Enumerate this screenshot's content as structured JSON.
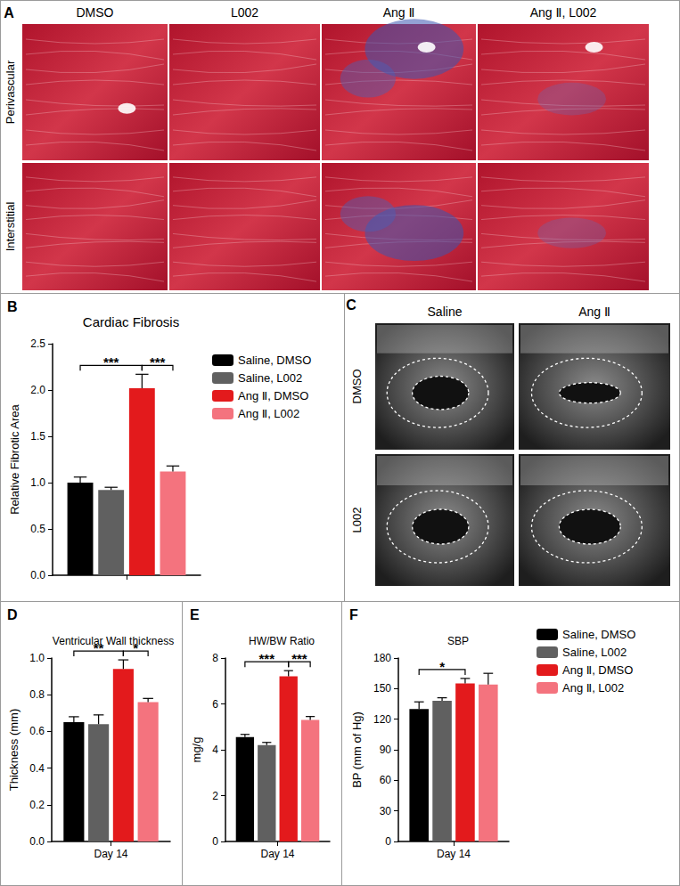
{
  "figure": {
    "A": {
      "panel": "A",
      "columns": [
        "DMSO",
        "L002",
        "Ang Ⅱ",
        "Ang Ⅱ, L002"
      ],
      "rows": [
        "Perivascular",
        "Interstitial"
      ]
    },
    "C": {
      "panel": "C",
      "columns": [
        "Saline",
        "Ang Ⅱ"
      ],
      "rows": [
        "DMSO",
        "L002"
      ]
    }
  },
  "chart_data": [
    {
      "type": "bar",
      "panel": "B",
      "title": "Cardiac Fibrosis",
      "y_label": "Relative Fibrotic Area",
      "categories": [
        null
      ],
      "series": [
        {
          "name": "Saline, DMSO",
          "color": "#000000",
          "values": [
            1.0
          ],
          "errors": [
            0.06
          ]
        },
        {
          "name": "Saline, L002",
          "color": "#606060",
          "values": [
            0.92
          ],
          "errors": [
            0.03
          ]
        },
        {
          "name": "Ang Ⅱ, DMSO",
          "color": "#e31a1c",
          "values": [
            2.02
          ],
          "errors": [
            0.15
          ]
        },
        {
          "name": "Ang Ⅱ, L002",
          "color": "#f4737e",
          "values": [
            1.12
          ],
          "errors": [
            0.06
          ]
        }
      ],
      "ylim": [
        0,
        2.5
      ],
      "yticks": [
        {
          "value": 0,
          "label": "0.0"
        },
        {
          "value": 0.5,
          "label": "0.5"
        },
        {
          "value": 1,
          "label": "1.0"
        },
        {
          "value": 1.5,
          "label": "1.5"
        },
        {
          "value": 2,
          "label": "2.0"
        },
        {
          "value": 2.5,
          "label": "2.5"
        }
      ],
      "legend": "right",
      "annotations": [
        {
          "from": 0,
          "to": 2,
          "label": "***"
        },
        {
          "from": 2,
          "to": 3,
          "label": "***"
        }
      ]
    },
    {
      "type": "bar",
      "panel": "D",
      "title": "Ventricular Wall thickness",
      "y_label": "Thickness (mm)",
      "categories": [
        "Day 14"
      ],
      "series": [
        {
          "name": "Saline, DMSO",
          "color": "#000000",
          "values": [
            0.65
          ],
          "errors": [
            0.03
          ]
        },
        {
          "name": "Saline, L002",
          "color": "#606060",
          "values": [
            0.64
          ],
          "errors": [
            0.05
          ]
        },
        {
          "name": "Ang Ⅱ, DMSO",
          "color": "#e31a1c",
          "values": [
            0.94
          ],
          "errors": [
            0.05
          ]
        },
        {
          "name": "Ang Ⅱ, L002",
          "color": "#f4737e",
          "values": [
            0.76
          ],
          "errors": [
            0.02
          ]
        }
      ],
      "ylim": [
        0,
        1.0
      ],
      "yticks": [
        {
          "value": 0,
          "label": "0.0"
        },
        {
          "value": 0.2,
          "label": "0.2"
        },
        {
          "value": 0.4,
          "label": "0.4"
        },
        {
          "value": 0.6,
          "label": "0.6"
        },
        {
          "value": 0.8,
          "label": "0.8"
        },
        {
          "value": 1,
          "label": "1.0"
        }
      ],
      "annotations": [
        {
          "from": 0,
          "to": 2,
          "label": "**"
        },
        {
          "from": 2,
          "to": 3,
          "label": "*"
        }
      ]
    },
    {
      "type": "bar",
      "panel": "E",
      "title": "HW/BW Ratio",
      "y_label": "mg/g",
      "categories": [
        "Day 14"
      ],
      "series": [
        {
          "name": "Saline, DMSO",
          "color": "#000000",
          "values": [
            4.55
          ],
          "errors": [
            0.12
          ]
        },
        {
          "name": "Saline, L002",
          "color": "#606060",
          "values": [
            4.2
          ],
          "errors": [
            0.12
          ]
        },
        {
          "name": "Ang Ⅱ, DMSO",
          "color": "#e31a1c",
          "values": [
            7.2
          ],
          "errors": [
            0.25
          ]
        },
        {
          "name": "Ang Ⅱ, L002",
          "color": "#f4737e",
          "values": [
            5.3
          ],
          "errors": [
            0.15
          ]
        }
      ],
      "ylim": [
        0,
        8
      ],
      "yticks": [
        0,
        2,
        4,
        6,
        8
      ],
      "annotations": [
        {
          "from": 0,
          "to": 2,
          "label": "***"
        },
        {
          "from": 2,
          "to": 3,
          "label": "***"
        }
      ]
    },
    {
      "type": "bar",
      "panel": "F",
      "title": "SBP",
      "y_label": "BP (mm of Hg)",
      "categories": [
        "Day 14"
      ],
      "series": [
        {
          "name": "Saline, DMSO",
          "color": "#000000",
          "values": [
            130
          ],
          "errors": [
            7
          ]
        },
        {
          "name": "Saline, L002",
          "color": "#606060",
          "values": [
            138
          ],
          "errors": [
            3
          ]
        },
        {
          "name": "Ang Ⅱ, DMSO",
          "color": "#e31a1c",
          "values": [
            155
          ],
          "errors": [
            5
          ]
        },
        {
          "name": "Ang Ⅱ, L002",
          "color": "#f4737e",
          "values": [
            154
          ],
          "errors": [
            11
          ]
        }
      ],
      "ylim": [
        0,
        180
      ],
      "yticks": [
        0,
        30,
        60,
        90,
        120,
        150,
        180
      ],
      "legend": "right",
      "annotations": [
        {
          "from": 0,
          "to": 2,
          "label": "*"
        }
      ]
    }
  ]
}
